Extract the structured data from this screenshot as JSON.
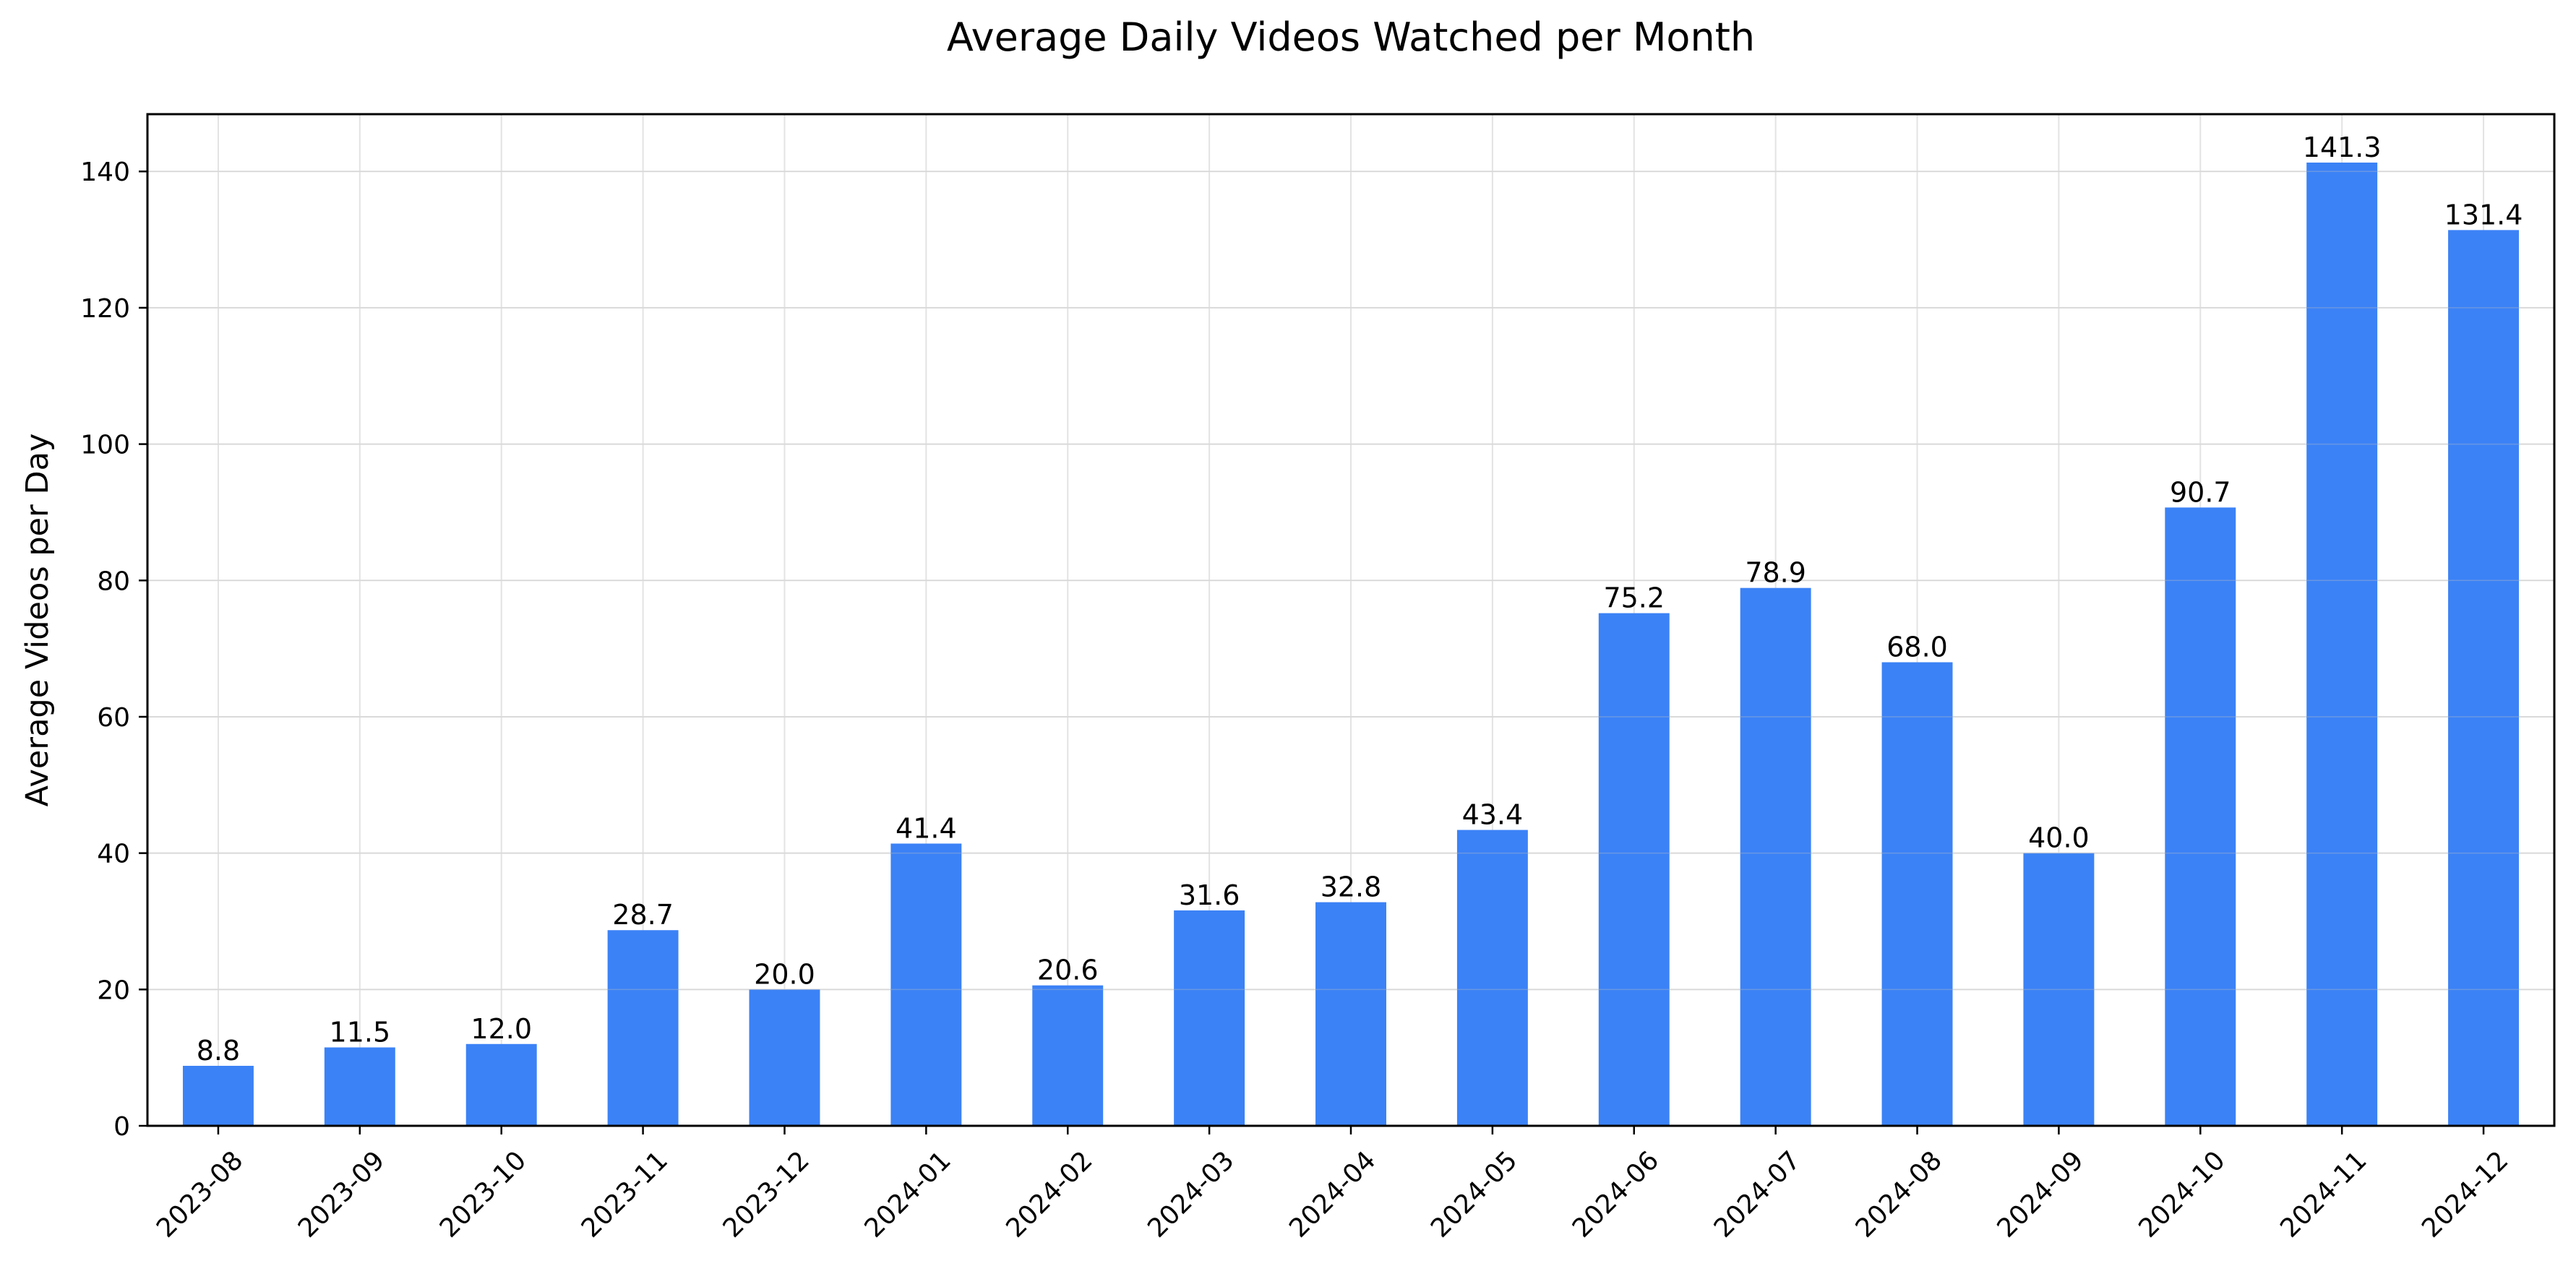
{
  "chart_data": {
    "type": "bar",
    "title": "Average Daily Videos Watched per Month",
    "xlabel": "",
    "ylabel": "Average Videos per Day",
    "categories": [
      "2023-08",
      "2023-09",
      "2023-10",
      "2023-11",
      "2023-12",
      "2024-01",
      "2024-02",
      "2024-03",
      "2024-04",
      "2024-05",
      "2024-06",
      "2024-07",
      "2024-08",
      "2024-09",
      "2024-10",
      "2024-11",
      "2024-12"
    ],
    "values": [
      8.8,
      11.5,
      12.0,
      28.7,
      20.0,
      41.4,
      20.6,
      31.6,
      32.8,
      43.4,
      75.2,
      78.9,
      68.0,
      40.0,
      90.7,
      141.3,
      131.4
    ],
    "value_labels": [
      "8.8",
      "11.5",
      "12.0",
      "28.7",
      "20.0",
      "41.4",
      "20.6",
      "31.6",
      "32.8",
      "43.4",
      "75.2",
      "78.9",
      "68.0",
      "40.0",
      "90.7",
      "141.3",
      "131.4"
    ],
    "ylim": [
      0,
      148.4
    ],
    "yticks": [
      0,
      20,
      40,
      60,
      80,
      100,
      120,
      140
    ],
    "grid": true,
    "bar_color": "#3b82f6",
    "grid_color": "#e3e3e3"
  }
}
